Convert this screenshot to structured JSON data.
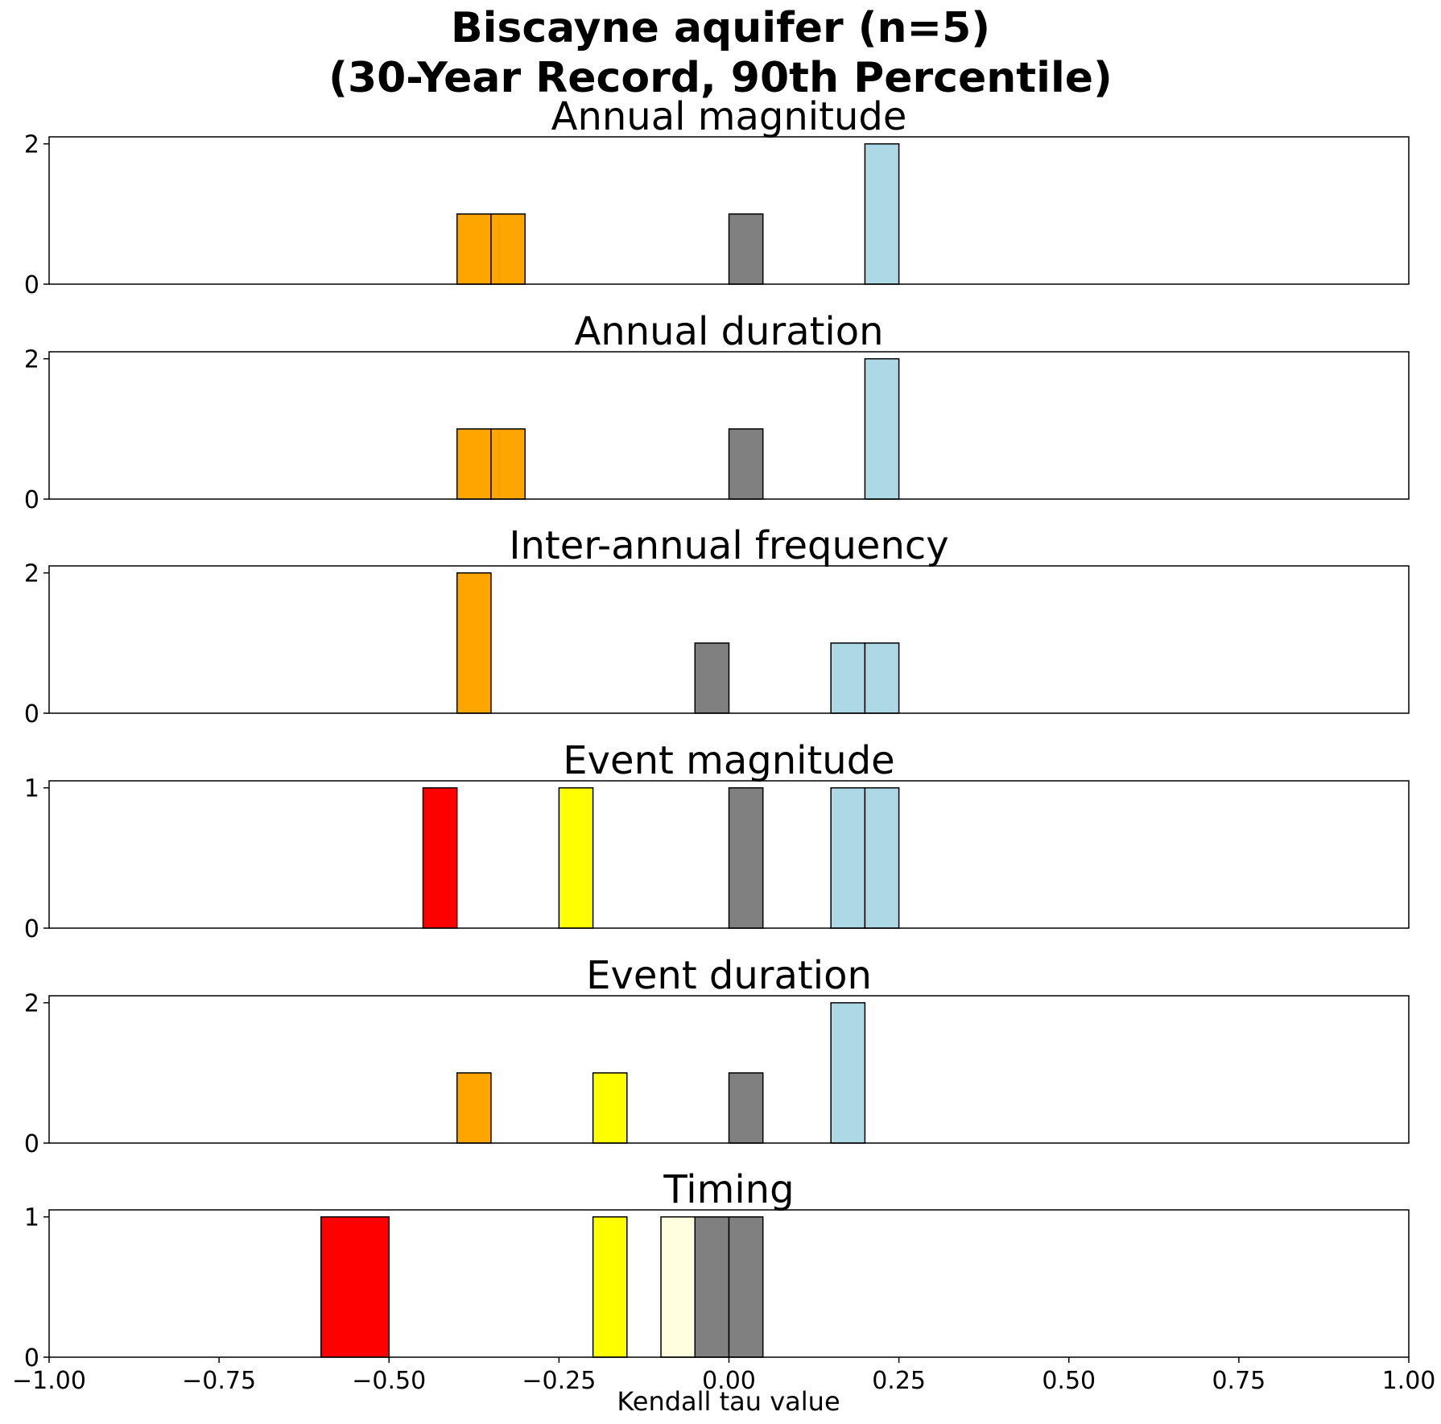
{
  "figure": {
    "title_line1": "Biscayne aquifer (n=5)",
    "title_line2": "(30-Year Record, 90th Percentile)",
    "xlabel": "Kendall tau value"
  },
  "colors": {
    "orange": "#FFA500",
    "gray": "#808080",
    "lightblue": "#ADD8E6",
    "red": "#FF0000",
    "yellow": "#FFFF00",
    "lightyellow": "#FFFFE0",
    "edge": "#000000"
  },
  "chart_data": [
    {
      "type": "bar",
      "title": "Annual magnitude",
      "xlim": [
        -1.0,
        1.0
      ],
      "ylim": [
        0,
        2.1
      ],
      "yticks": [
        "0",
        "2"
      ],
      "bins": [
        {
          "x0": -0.4,
          "x1": -0.35,
          "count": 1,
          "color": "orange"
        },
        {
          "x0": -0.35,
          "x1": -0.3,
          "count": 1,
          "color": "orange"
        },
        {
          "x0": 0.0,
          "x1": 0.05,
          "count": 1,
          "color": "gray"
        },
        {
          "x0": 0.2,
          "x1": 0.25,
          "count": 2,
          "color": "lightblue"
        }
      ]
    },
    {
      "type": "bar",
      "title": "Annual duration",
      "xlim": [
        -1.0,
        1.0
      ],
      "ylim": [
        0,
        2.1
      ],
      "yticks": [
        "0",
        "2"
      ],
      "bins": [
        {
          "x0": -0.4,
          "x1": -0.35,
          "count": 1,
          "color": "orange"
        },
        {
          "x0": -0.35,
          "x1": -0.3,
          "count": 1,
          "color": "orange"
        },
        {
          "x0": 0.0,
          "x1": 0.05,
          "count": 1,
          "color": "gray"
        },
        {
          "x0": 0.2,
          "x1": 0.25,
          "count": 2,
          "color": "lightblue"
        }
      ]
    },
    {
      "type": "bar",
      "title": "Inter-annual frequency",
      "xlim": [
        -1.0,
        1.0
      ],
      "ylim": [
        0,
        2.1
      ],
      "yticks": [
        "0",
        "2"
      ],
      "bins": [
        {
          "x0": -0.4,
          "x1": -0.35,
          "count": 2,
          "color": "orange"
        },
        {
          "x0": -0.05,
          "x1": 0.0,
          "count": 1,
          "color": "gray"
        },
        {
          "x0": 0.15,
          "x1": 0.2,
          "count": 1,
          "color": "lightblue"
        },
        {
          "x0": 0.2,
          "x1": 0.25,
          "count": 1,
          "color": "lightblue"
        }
      ]
    },
    {
      "type": "bar",
      "title": "Event magnitude",
      "xlim": [
        -1.0,
        1.0
      ],
      "ylim": [
        0,
        1.05
      ],
      "yticks": [
        "0",
        "1"
      ],
      "bins": [
        {
          "x0": -0.45,
          "x1": -0.4,
          "count": 1,
          "color": "red"
        },
        {
          "x0": -0.25,
          "x1": -0.2,
          "count": 1,
          "color": "yellow"
        },
        {
          "x0": 0.0,
          "x1": 0.05,
          "count": 1,
          "color": "gray"
        },
        {
          "x0": 0.15,
          "x1": 0.2,
          "count": 1,
          "color": "lightblue"
        },
        {
          "x0": 0.2,
          "x1": 0.25,
          "count": 1,
          "color": "lightblue"
        }
      ]
    },
    {
      "type": "bar",
      "title": "Event duration",
      "xlim": [
        -1.0,
        1.0
      ],
      "ylim": [
        0,
        2.1
      ],
      "yticks": [
        "0",
        "2"
      ],
      "bins": [
        {
          "x0": -0.4,
          "x1": -0.35,
          "count": 1,
          "color": "orange"
        },
        {
          "x0": -0.2,
          "x1": -0.15,
          "count": 1,
          "color": "yellow"
        },
        {
          "x0": 0.0,
          "x1": 0.05,
          "count": 1,
          "color": "gray"
        },
        {
          "x0": 0.15,
          "x1": 0.2,
          "count": 2,
          "color": "lightblue"
        }
      ]
    },
    {
      "type": "bar",
      "title": "Timing",
      "xlim": [
        -1.0,
        1.0
      ],
      "ylim": [
        0,
        1.05
      ],
      "yticks": [
        "0",
        "1"
      ],
      "xticks": [
        "−1.00",
        "−0.75",
        "−0.50",
        "−0.25",
        "0.00",
        "0.25",
        "0.50",
        "0.75",
        "1.00"
      ],
      "bins": [
        {
          "x0": -0.6,
          "x1": -0.5,
          "count": 1,
          "color": "red"
        },
        {
          "x0": -0.2,
          "x1": -0.15,
          "count": 1,
          "color": "yellow"
        },
        {
          "x0": -0.1,
          "x1": -0.05,
          "count": 1,
          "color": "lightyellow"
        },
        {
          "x0": -0.05,
          "x1": 0.0,
          "count": 1,
          "color": "gray"
        },
        {
          "x0": 0.0,
          "x1": 0.05,
          "count": 1,
          "color": "gray"
        }
      ]
    }
  ]
}
